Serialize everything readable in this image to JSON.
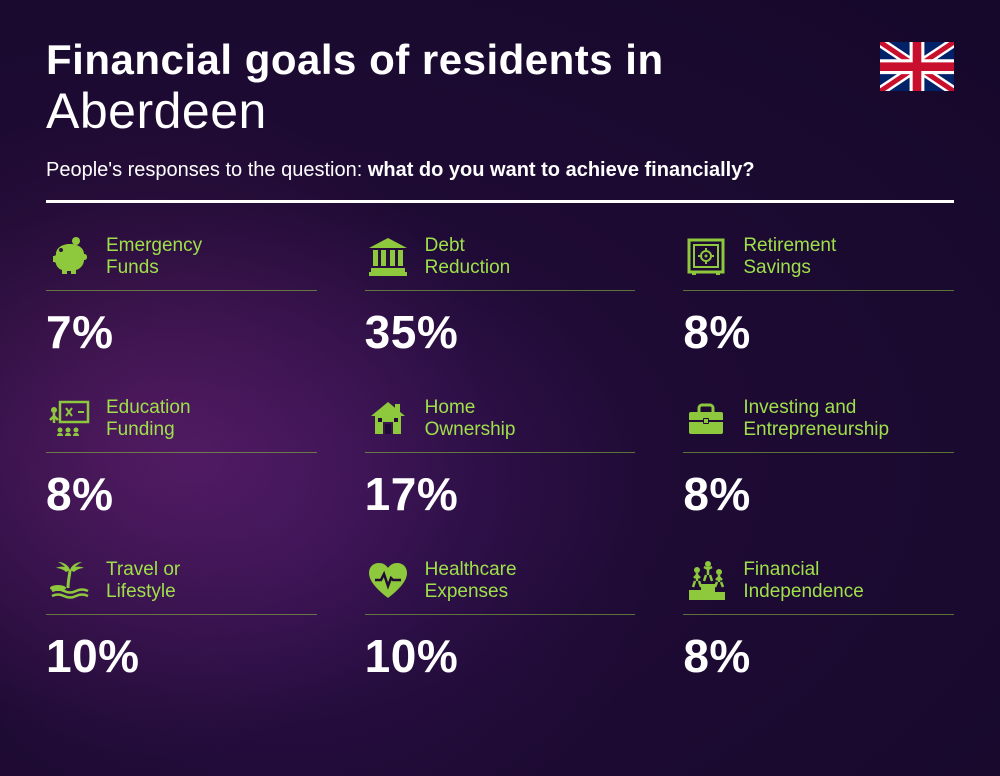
{
  "header": {
    "title_line1": "Financial goals of residents in",
    "title_line2": "Aberdeen",
    "subtitle_prefix": "People's responses to the question: ",
    "subtitle_bold": "what do you want to achieve financially?"
  },
  "style": {
    "accent_color": "#8ec83c",
    "label_color": "#9fe04a",
    "value_color": "#ffffff",
    "divider_color": "#ffffff",
    "title_fontsize": 42,
    "subtitle_fontsize": 20,
    "value_fontsize": 46,
    "label_fontsize": 19,
    "grid_columns": 3
  },
  "flag": "uk",
  "items": [
    {
      "icon": "piggy-bank-icon",
      "label": "Emergency\nFunds",
      "value": "7%"
    },
    {
      "icon": "bank-icon",
      "label": "Debt\nReduction",
      "value": "35%"
    },
    {
      "icon": "safe-icon",
      "label": "Retirement\nSavings",
      "value": "8%"
    },
    {
      "icon": "education-icon",
      "label": "Education\nFunding",
      "value": "8%"
    },
    {
      "icon": "house-icon",
      "label": "Home\nOwnership",
      "value": "17%"
    },
    {
      "icon": "briefcase-icon",
      "label": "Investing and\nEntrepreneurship",
      "value": "8%"
    },
    {
      "icon": "palm-icon",
      "label": "Travel or\nLifestyle",
      "value": "10%"
    },
    {
      "icon": "heart-pulse-icon",
      "label": "Healthcare\nExpenses",
      "value": "10%"
    },
    {
      "icon": "podium-icon",
      "label": "Financial\nIndependence",
      "value": "8%"
    }
  ]
}
